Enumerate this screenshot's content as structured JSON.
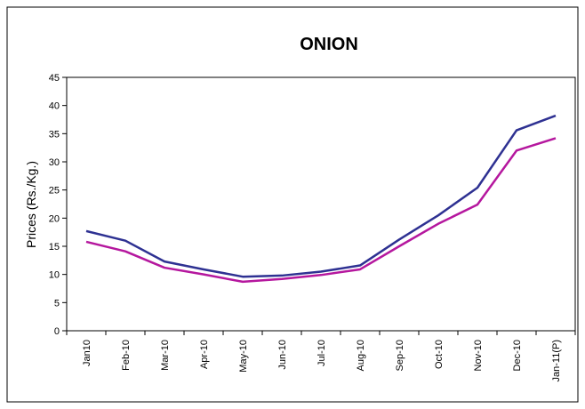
{
  "chart_data": {
    "type": "line",
    "title": "ONION",
    "y_label": "Prices  (Rs./Kg.)",
    "categories": [
      "Jan10",
      "Feb-10",
      "Mar-10",
      "Apr-10",
      "May-10",
      "Jun-10",
      "Jul-10",
      "Aug-10",
      "Sep-10",
      "Oct-10",
      "Nov-10",
      "Dec-10",
      "Jan-11(P)"
    ],
    "series": [
      {
        "color": "#2e3192",
        "values": [
          17.7,
          16.0,
          12.3,
          10.9,
          9.6,
          9.8,
          10.5,
          11.6,
          16.2,
          20.5,
          25.4,
          35.6,
          38.2
        ]
      },
      {
        "color": "#b5179e",
        "values": [
          15.8,
          14.1,
          11.2,
          10.0,
          8.7,
          9.2,
          9.9,
          10.9,
          15.0,
          19.0,
          22.4,
          32.0,
          34.2
        ]
      }
    ],
    "ylim": [
      0,
      45
    ],
    "yticks": [
      0,
      5,
      10,
      15,
      20,
      25,
      30,
      35,
      40,
      45
    ]
  }
}
